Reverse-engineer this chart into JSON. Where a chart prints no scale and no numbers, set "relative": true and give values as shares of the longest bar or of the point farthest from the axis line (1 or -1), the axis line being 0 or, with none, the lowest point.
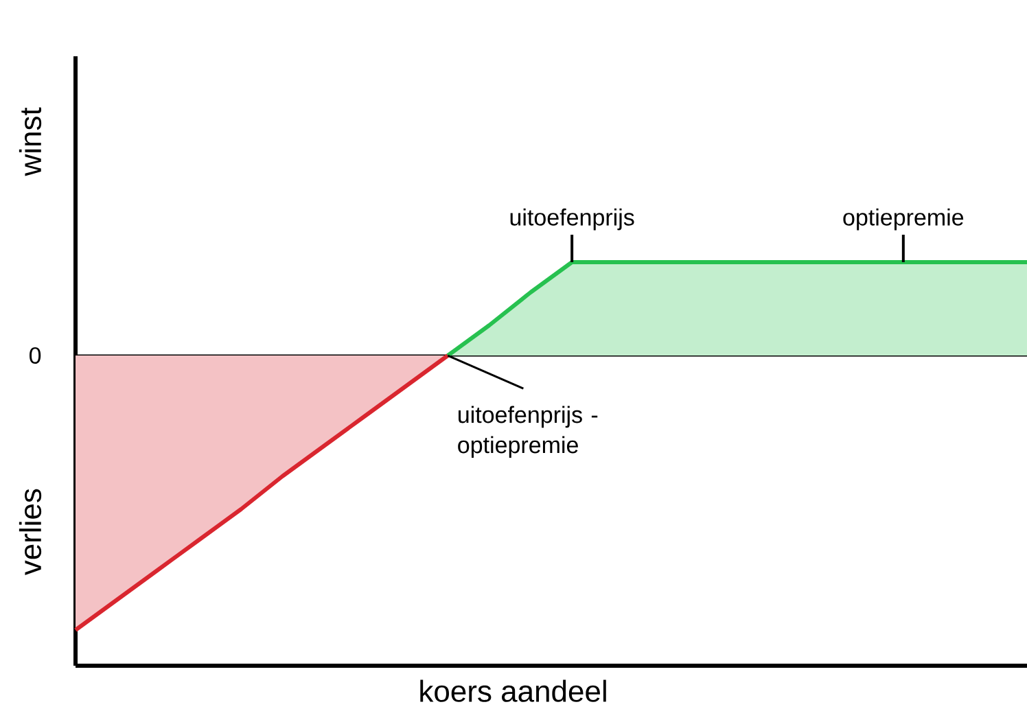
{
  "chart_data": {
    "type": "area",
    "relative": true,
    "xlabel": "koers aandeel",
    "ylabel": "winst",
    "tick_labels": false,
    "categories": [
      null,
      null,
      null,
      null,
      null,
      null,
      null,
      null,
      null,
      null,
      null,
      null,
      null,
      null,
      null,
      null,
      null,
      null,
      null,
      null,
      null,
      null,
      null,
      null
    ],
    "series": [
      {
        "color": "#d9262f",
        "values": [
          -1,
          -0.89,
          -0.78,
          -0.67,
          -0.56,
          -0.44,
          -0.33,
          -0.22,
          -0.11,
          0,
          null,
          null,
          null,
          null,
          null,
          null,
          null,
          null,
          null,
          null,
          null,
          null,
          null,
          null
        ]
      },
      {
        "color": "#27c150",
        "values": [
          null,
          null,
          null,
          null,
          null,
          null,
          null,
          null,
          null,
          0,
          0.11,
          0.23,
          0.34,
          0.34,
          0.34,
          0.34,
          0.34,
          0.34,
          0.34,
          0.34,
          0.34,
          0.34,
          0.34,
          0.34
        ]
      }
    ],
    "ref_lines": [
      {
        "axis": "y",
        "value": 0,
        "label": "0",
        "color": "#000000"
      }
    ],
    "annotations": [
      "uitoefenprijs",
      "optiepremie",
      "uitoefenprijs - optiepremie",
      "verlies"
    ]
  }
}
